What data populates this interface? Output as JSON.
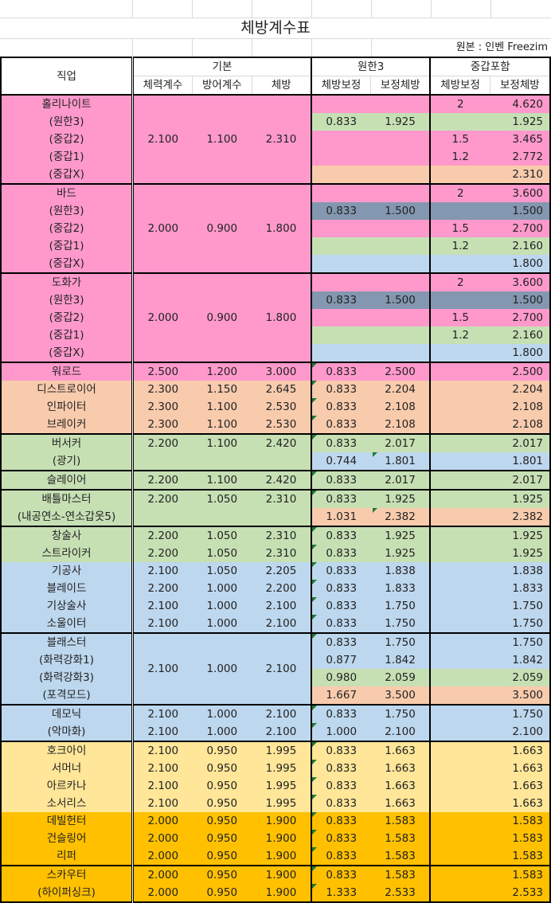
{
  "sheet": {
    "title": "체방계수표",
    "source": "원본 : 인벤 Freezim",
    "colors": {
      "pink": "#ff99cc",
      "peach": "#f8cbad",
      "green": "#c6e0b4",
      "blue": "#bdd7ee",
      "slate": "#8497b0",
      "lightyellow": "#ffe699",
      "gold": "#ffc000"
    },
    "header": {
      "job": "직업",
      "group_basic": "기본",
      "group_limit": "원한3",
      "group_armor": "중갑포함",
      "cols": [
        "체력계수",
        "방어계수",
        "체방",
        "체방보정",
        "보정체방",
        "체방보정",
        "보정체방"
      ]
    },
    "rows": [
      {
        "name": "홀리나이트",
        "hp": "2.100",
        "def": "1.100",
        "hd": "2.310",
        "c1": "",
        "v1": "",
        "c2": "2",
        "v2": "4.620",
        "bg": "pink",
        "bgL": "pink",
        "bgR": "pink",
        "merge": 5,
        "top": true
      },
      {
        "name": "(원한3)",
        "c1": "0.833",
        "v1": "1.925",
        "c2": "",
        "v2": "1.925",
        "bg": "pink",
        "bgL": "green",
        "bgR": "green"
      },
      {
        "name": "(중갑2)",
        "c1": "",
        "v1": "",
        "c2": "1.5",
        "v2": "3.465",
        "bg": "pink",
        "bgL": "pink",
        "bgR": "pink"
      },
      {
        "name": "(중갑1)",
        "c1": "",
        "v1": "",
        "c2": "1.2",
        "v2": "2.772",
        "bg": "pink",
        "bgL": "pink",
        "bgR": "pink"
      },
      {
        "name": "(중갑X)",
        "c1": "",
        "v1": "",
        "c2": "",
        "v2": "2.310",
        "bg": "pink",
        "bgL": "peach",
        "bgR": "peach"
      },
      {
        "name": "바드",
        "hp": "2.000",
        "def": "0.900",
        "hd": "1.800",
        "c1": "",
        "v1": "",
        "c2": "2",
        "v2": "3.600",
        "bg": "pink",
        "bgL": "pink",
        "bgR": "pink",
        "merge": 5,
        "top": true
      },
      {
        "name": "(원한3)",
        "c1": "0.833",
        "v1": "1.500",
        "c2": "",
        "v2": "1.500",
        "bg": "pink",
        "bgL": "slate",
        "bgR": "slate"
      },
      {
        "name": "(중갑2)",
        "c1": "",
        "v1": "",
        "c2": "1.5",
        "v2": "2.700",
        "bg": "pink",
        "bgL": "pink",
        "bgR": "pink"
      },
      {
        "name": "(중갑1)",
        "c1": "",
        "v1": "",
        "c2": "1.2",
        "v2": "2.160",
        "bg": "pink",
        "bgL": "green",
        "bgR": "green"
      },
      {
        "name": "(중갑X)",
        "c1": "",
        "v1": "",
        "c2": "",
        "v2": "1.800",
        "bg": "pink",
        "bgL": "blue",
        "bgR": "blue"
      },
      {
        "name": "도화가",
        "hp": "2.000",
        "def": "0.900",
        "hd": "1.800",
        "c1": "",
        "v1": "",
        "c2": "2",
        "v2": "3.600",
        "bg": "pink",
        "bgL": "pink",
        "bgR": "pink",
        "merge": 5,
        "top": true
      },
      {
        "name": "(원한3)",
        "c1": "0.833",
        "v1": "1.500",
        "c2": "",
        "v2": "1.500",
        "bg": "pink",
        "bgL": "slate",
        "bgR": "slate"
      },
      {
        "name": "(중갑2)",
        "c1": "",
        "v1": "",
        "c2": "1.5",
        "v2": "2.700",
        "bg": "pink",
        "bgL": "pink",
        "bgR": "pink"
      },
      {
        "name": "(중갑1)",
        "c1": "",
        "v1": "",
        "c2": "1.2",
        "v2": "2.160",
        "bg": "pink",
        "bgL": "green",
        "bgR": "green"
      },
      {
        "name": "(중갑X)",
        "c1": "",
        "v1": "",
        "c2": "",
        "v2": "1.800",
        "bg": "pink",
        "bgL": "blue",
        "bgR": "blue"
      },
      {
        "name": "워로드",
        "hp": "2.500",
        "def": "1.200",
        "hd": "3.000",
        "c1": "0.833",
        "v1": "2.500",
        "c2": "",
        "v2": "2.500",
        "bg": "pink",
        "bgL": "pink",
        "bgR": "pink",
        "top": true,
        "tri": true
      },
      {
        "name": "디스트로이어",
        "hp": "2.300",
        "def": "1.150",
        "hd": "2.645",
        "c1": "0.833",
        "v1": "2.204",
        "c2": "",
        "v2": "2.204",
        "bg": "peach",
        "bgL": "peach",
        "bgR": "peach",
        "tri": true
      },
      {
        "name": "인파이터",
        "hp": "2.300",
        "def": "1.100",
        "hd": "2.530",
        "c1": "0.833",
        "v1": "2.108",
        "c2": "",
        "v2": "2.108",
        "bg": "peach",
        "bgL": "peach",
        "bgR": "peach",
        "tri": true
      },
      {
        "name": "브레이커",
        "hp": "2.300",
        "def": "1.100",
        "hd": "2.530",
        "c1": "0.833",
        "v1": "2.108",
        "c2": "",
        "v2": "2.108",
        "bg": "peach",
        "bgL": "peach",
        "bgR": "peach",
        "tri": true
      },
      {
        "name": "버서커",
        "hp": "2.200",
        "def": "1.100",
        "hd": "2.420",
        "c1": "0.833",
        "v1": "2.017",
        "c2": "",
        "v2": "2.017",
        "bg": "green",
        "bgL": "green",
        "bgR": "green",
        "top": true,
        "tri": true
      },
      {
        "name": "(광기)",
        "hp": "",
        "def": "",
        "hd": "",
        "c1": "0.744",
        "v1": "1.801",
        "c2": "",
        "v2": "1.801",
        "bg": "green",
        "bgL": "blue",
        "bgR": "blue",
        "triv": true
      },
      {
        "name": "슬레이어",
        "hp": "2.200",
        "def": "1.100",
        "hd": "2.420",
        "c1": "0.833",
        "v1": "2.017",
        "c2": "",
        "v2": "2.017",
        "bg": "green",
        "bgL": "green",
        "bgR": "green",
        "top": true,
        "tri": true
      },
      {
        "name": "배틀마스터",
        "hp": "2.200",
        "def": "1.050",
        "hd": "2.310",
        "c1": "0.833",
        "v1": "1.925",
        "c2": "",
        "v2": "1.925",
        "bg": "green",
        "bgL": "green",
        "bgR": "green",
        "top": true,
        "tri": true
      },
      {
        "name": "(내공연소-연소갑옷5)",
        "hp": "",
        "def": "",
        "hd": "",
        "c1": "1.031",
        "v1": "2.382",
        "c2": "",
        "v2": "2.382",
        "bg": "green",
        "bgL": "peach",
        "bgR": "peach",
        "triv": true
      },
      {
        "name": "창술사",
        "hp": "2.200",
        "def": "1.050",
        "hd": "2.310",
        "c1": "0.833",
        "v1": "1.925",
        "c2": "",
        "v2": "1.925",
        "bg": "green",
        "bgL": "green",
        "bgR": "green",
        "top": true,
        "tri": true
      },
      {
        "name": "스트라이커",
        "hp": "2.200",
        "def": "1.050",
        "hd": "2.310",
        "c1": "0.833",
        "v1": "1.925",
        "c2": "",
        "v2": "1.925",
        "bg": "green",
        "bgL": "green",
        "bgR": "green",
        "tri": true
      },
      {
        "name": "기공사",
        "hp": "2.100",
        "def": "1.050",
        "hd": "2.205",
        "c1": "0.833",
        "v1": "1.838",
        "c2": "",
        "v2": "1.838",
        "bg": "blue",
        "bgL": "blue",
        "bgR": "blue",
        "tri": true
      },
      {
        "name": "블레이드",
        "hp": "2.200",
        "def": "1.000",
        "hd": "2.200",
        "c1": "0.833",
        "v1": "1.833",
        "c2": "",
        "v2": "1.833",
        "bg": "blue",
        "bgL": "blue",
        "bgR": "blue",
        "tri": true
      },
      {
        "name": "기상술사",
        "hp": "2.100",
        "def": "1.000",
        "hd": "2.100",
        "c1": "0.833",
        "v1": "1.750",
        "c2": "",
        "v2": "1.750",
        "bg": "blue",
        "bgL": "blue",
        "bgR": "blue",
        "tri": true
      },
      {
        "name": "소울이터",
        "hp": "2.100",
        "def": "1.000",
        "hd": "2.100",
        "c1": "0.833",
        "v1": "1.750",
        "c2": "",
        "v2": "1.750",
        "bg": "blue",
        "bgL": "blue",
        "bgR": "blue",
        "tri": true
      },
      {
        "name": "블래스터",
        "hp": "2.100",
        "def": "1.000",
        "hd": "2.100",
        "c1": "0.833",
        "v1": "1.750",
        "c2": "",
        "v2": "1.750",
        "bg": "blue",
        "bgL": "blue",
        "bgR": "blue",
        "merge": 4,
        "top": true,
        "tri": true
      },
      {
        "name": "(화력강화1)",
        "c1": "0.877",
        "v1": "1.842",
        "c2": "",
        "v2": "1.842",
        "bg": "blue",
        "bgL": "blue",
        "bgR": "blue"
      },
      {
        "name": "(화력강화3)",
        "c1": "0.980",
        "v1": "2.059",
        "c2": "",
        "v2": "2.059",
        "bg": "blue",
        "bgL": "green",
        "bgR": "green"
      },
      {
        "name": "(포격모드)",
        "c1": "1.667",
        "v1": "3.500",
        "c2": "",
        "v2": "3.500",
        "bg": "blue",
        "bgL": "peach",
        "bgR": "peach"
      },
      {
        "name": "데모닉",
        "hp": "2.100",
        "def": "1.000",
        "hd": "2.100",
        "c1": "0.833",
        "v1": "1.750",
        "c2": "",
        "v2": "1.750",
        "bg": "blue",
        "bgL": "blue",
        "bgR": "blue",
        "top": true,
        "tri": true
      },
      {
        "name": "(악마화)",
        "hp": "2.100",
        "def": "1.000",
        "hd": "2.100",
        "c1": "1.000",
        "v1": "2.100",
        "c2": "",
        "v2": "2.100",
        "bg": "blue",
        "bgL": "blue",
        "bgR": "blue",
        "tri": true
      },
      {
        "name": "호크아이",
        "hp": "2.100",
        "def": "0.950",
        "hd": "1.995",
        "c1": "0.833",
        "v1": "1.663",
        "c2": "",
        "v2": "1.663",
        "bg": "lightyellow",
        "bgL": "lightyellow",
        "bgR": "lightyellow",
        "top": true,
        "tri": true
      },
      {
        "name": "서머너",
        "hp": "2.100",
        "def": "0.950",
        "hd": "1.995",
        "c1": "0.833",
        "v1": "1.663",
        "c2": "",
        "v2": "1.663",
        "bg": "lightyellow",
        "bgL": "lightyellow",
        "bgR": "lightyellow",
        "tri": true
      },
      {
        "name": "아르카나",
        "hp": "2.100",
        "def": "0.950",
        "hd": "1.995",
        "c1": "0.833",
        "v1": "1.663",
        "c2": "",
        "v2": "1.663",
        "bg": "lightyellow",
        "bgL": "lightyellow",
        "bgR": "lightyellow",
        "tri": true
      },
      {
        "name": "소서리스",
        "hp": "2.100",
        "def": "0.950",
        "hd": "1.995",
        "c1": "0.833",
        "v1": "1.663",
        "c2": "",
        "v2": "1.663",
        "bg": "lightyellow",
        "bgL": "lightyellow",
        "bgR": "lightyellow",
        "tri": true
      },
      {
        "name": "데빌헌터",
        "hp": "2.000",
        "def": "0.950",
        "hd": "1.900",
        "c1": "0.833",
        "v1": "1.583",
        "c2": "",
        "v2": "1.583",
        "bg": "gold",
        "bgL": "gold",
        "bgR": "gold",
        "tri": true
      },
      {
        "name": "건슬링어",
        "hp": "2.000",
        "def": "0.950",
        "hd": "1.900",
        "c1": "0.833",
        "v1": "1.583",
        "c2": "",
        "v2": "1.583",
        "bg": "gold",
        "bgL": "gold",
        "bgR": "gold",
        "tri": true
      },
      {
        "name": "리퍼",
        "hp": "2.000",
        "def": "0.950",
        "hd": "1.900",
        "c1": "0.833",
        "v1": "1.583",
        "c2": "",
        "v2": "1.583",
        "bg": "gold",
        "bgL": "gold",
        "bgR": "gold",
        "tri": true
      },
      {
        "name": "스카우터",
        "hp": "2.000",
        "def": "0.950",
        "hd": "1.900",
        "c1": "0.833",
        "v1": "1.583",
        "c2": "",
        "v2": "1.583",
        "bg": "gold",
        "bgL": "gold",
        "bgR": "gold",
        "top": true,
        "tri": true
      },
      {
        "name": "(하이퍼싱크)",
        "hp": "2.000",
        "def": "0.950",
        "hd": "1.900",
        "c1": "1.333",
        "v1": "2.533",
        "c2": "",
        "v2": "2.533",
        "bg": "gold",
        "bgL": "gold",
        "bgR": "gold",
        "tri": true,
        "last": true
      }
    ]
  }
}
